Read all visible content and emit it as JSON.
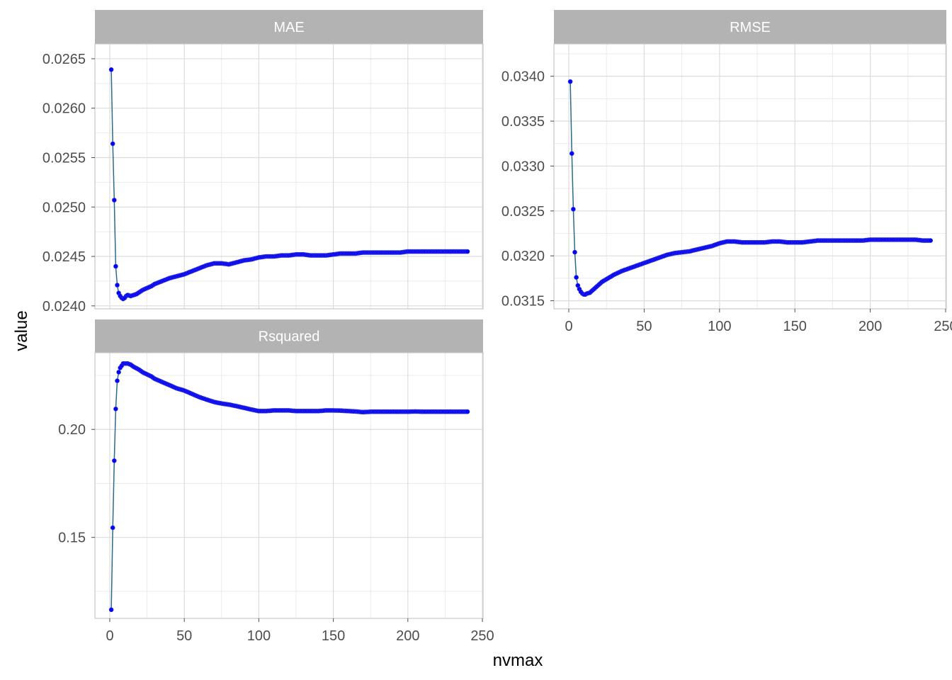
{
  "chart_data": {
    "type": "line",
    "layout": "facet_wrap",
    "xlabel": "nvmax",
    "ylabel": "value",
    "xlim": [
      0,
      250
    ],
    "x_ticks": [
      0,
      50,
      100,
      150,
      200,
      250
    ],
    "x": [
      1,
      2,
      3,
      4,
      5,
      6,
      7,
      8,
      9,
      10,
      11,
      12,
      14,
      16,
      18,
      20,
      22,
      25,
      28,
      30,
      35,
      40,
      45,
      50,
      55,
      60,
      65,
      70,
      75,
      80,
      85,
      90,
      95,
      100,
      105,
      110,
      115,
      120,
      125,
      130,
      135,
      140,
      145,
      150,
      155,
      160,
      165,
      170,
      175,
      180,
      185,
      190,
      195,
      200,
      205,
      210,
      215,
      220,
      225,
      230,
      235,
      240
    ],
    "point_color": "#0000ff",
    "line_color": "#2c6a8c",
    "grid": true,
    "facets": [
      {
        "name": "MAE",
        "ylim": [
          0.02397,
          0.02665
        ],
        "y_ticks": [
          "0.0240",
          "0.0245",
          "0.0250",
          "0.0255",
          "0.0260",
          "0.0265"
        ],
        "y_tick_values": [
          0.024,
          0.0245,
          0.025,
          0.0255,
          0.026,
          0.0265
        ],
        "values": [
          0.02639,
          0.02564,
          0.02507,
          0.0244,
          0.02421,
          0.02413,
          0.0241,
          0.02408,
          0.02407,
          0.02408,
          0.0241,
          0.02411,
          0.0241,
          0.02411,
          0.02412,
          0.02414,
          0.02416,
          0.02418,
          0.0242,
          0.02422,
          0.02425,
          0.02428,
          0.0243,
          0.02432,
          0.02435,
          0.02438,
          0.02441,
          0.02443,
          0.02443,
          0.02442,
          0.02444,
          0.02446,
          0.02447,
          0.02449,
          0.0245,
          0.0245,
          0.02451,
          0.02451,
          0.02452,
          0.02452,
          0.02451,
          0.02451,
          0.02451,
          0.02452,
          0.02453,
          0.02453,
          0.02453,
          0.02454,
          0.02454,
          0.02454,
          0.02454,
          0.02454,
          0.02454,
          0.02455,
          0.02455,
          0.02455,
          0.02455,
          0.02455,
          0.02455,
          0.02455,
          0.02455,
          0.02455
        ]
      },
      {
        "name": "RMSE",
        "ylim": [
          0.03141,
          0.03436
        ],
        "y_ticks": [
          "0.0315",
          "0.0320",
          "0.0325",
          "0.0330",
          "0.0335",
          "0.0340"
        ],
        "y_tick_values": [
          0.0315,
          0.032,
          0.0325,
          0.033,
          0.0335,
          0.034
        ],
        "values": [
          0.03394,
          0.03314,
          0.03252,
          0.03204,
          0.03176,
          0.03167,
          0.03163,
          0.0316,
          0.03158,
          0.03157,
          0.03157,
          0.03158,
          0.03159,
          0.03162,
          0.03165,
          0.03168,
          0.03171,
          0.03174,
          0.03177,
          0.03179,
          0.03183,
          0.03186,
          0.03189,
          0.03192,
          0.03195,
          0.03198,
          0.03201,
          0.03203,
          0.03204,
          0.03205,
          0.03207,
          0.03209,
          0.03211,
          0.03214,
          0.03216,
          0.03216,
          0.03215,
          0.03215,
          0.03215,
          0.03215,
          0.03216,
          0.03216,
          0.03215,
          0.03215,
          0.03215,
          0.03216,
          0.03217,
          0.03217,
          0.03217,
          0.03217,
          0.03217,
          0.03217,
          0.03217,
          0.03218,
          0.03218,
          0.03218,
          0.03218,
          0.03218,
          0.03218,
          0.03218,
          0.03217,
          0.03217
        ]
      },
      {
        "name": "Rsquared",
        "ylim": [
          0.1125,
          0.2355
        ],
        "y_ticks": [
          "0.15",
          "0.20"
        ],
        "y_tick_values": [
          0.15,
          0.2
        ],
        "values": [
          0.1165,
          0.1545,
          0.1855,
          0.2095,
          0.2225,
          0.2265,
          0.2285,
          0.2295,
          0.2305,
          0.2305,
          0.2305,
          0.2305,
          0.23,
          0.229,
          0.2283,
          0.2275,
          0.2265,
          0.2255,
          0.2245,
          0.2235,
          0.222,
          0.2205,
          0.219,
          0.218,
          0.2165,
          0.215,
          0.2138,
          0.2127,
          0.212,
          0.2115,
          0.2108,
          0.21,
          0.2092,
          0.2085,
          0.2085,
          0.2088,
          0.2088,
          0.2088,
          0.2085,
          0.2085,
          0.2085,
          0.2085,
          0.2088,
          0.2088,
          0.2087,
          0.2085,
          0.2083,
          0.208,
          0.2082,
          0.2082,
          0.2082,
          0.2082,
          0.2082,
          0.2082,
          0.2083,
          0.2082,
          0.2082,
          0.2082,
          0.2082,
          0.2082,
          0.2082,
          0.2082
        ]
      }
    ]
  }
}
